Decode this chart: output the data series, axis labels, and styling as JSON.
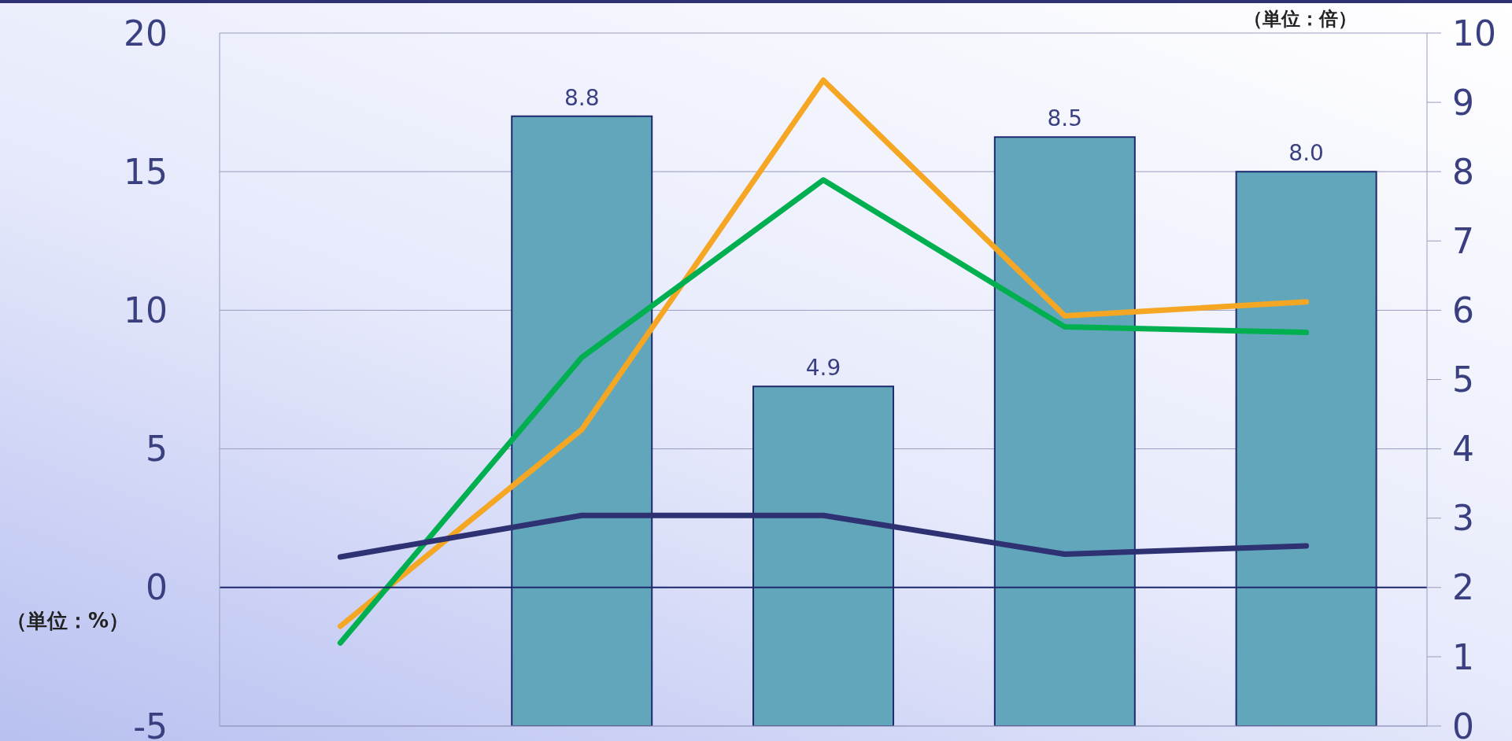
{
  "chart_data": {
    "type": "bar",
    "ylabel": "（単位：%）",
    "y2label": "（単位：倍）",
    "categories": [
      null,
      null,
      null,
      null,
      null
    ],
    "series": [
      {
        "axis": "y2",
        "color": "#62a6bb",
        "values": [
          null,
          8.8,
          4.9,
          8.5,
          8.0
        ],
        "value_labels": [
          null,
          "8.8",
          "4.9",
          "8.5",
          "8.0"
        ]
      },
      {
        "type": "line",
        "color": "#f5a623",
        "values": [
          -1.4,
          5.7,
          18.3,
          9.8,
          10.3
        ]
      },
      {
        "type": "line",
        "color": "#00b050",
        "values": [
          -2.0,
          8.3,
          14.7,
          9.4,
          9.2
        ]
      },
      {
        "type": "line",
        "color": "#2e3172",
        "values": [
          1.1,
          2.6,
          2.6,
          1.2,
          1.5
        ]
      }
    ],
    "ylim": [
      -5,
      20
    ],
    "yticks": [
      -5,
      0,
      5,
      10,
      15,
      20
    ],
    "y2lim": [
      0,
      10
    ],
    "y2ticks": [
      0,
      1,
      2,
      3,
      4,
      5,
      6,
      7,
      8,
      9,
      10
    ],
    "ref_lines": [
      {
        "axis": "y",
        "value": 0,
        "color": "#1f2a6e"
      }
    ],
    "grid": "y",
    "legend": false
  }
}
